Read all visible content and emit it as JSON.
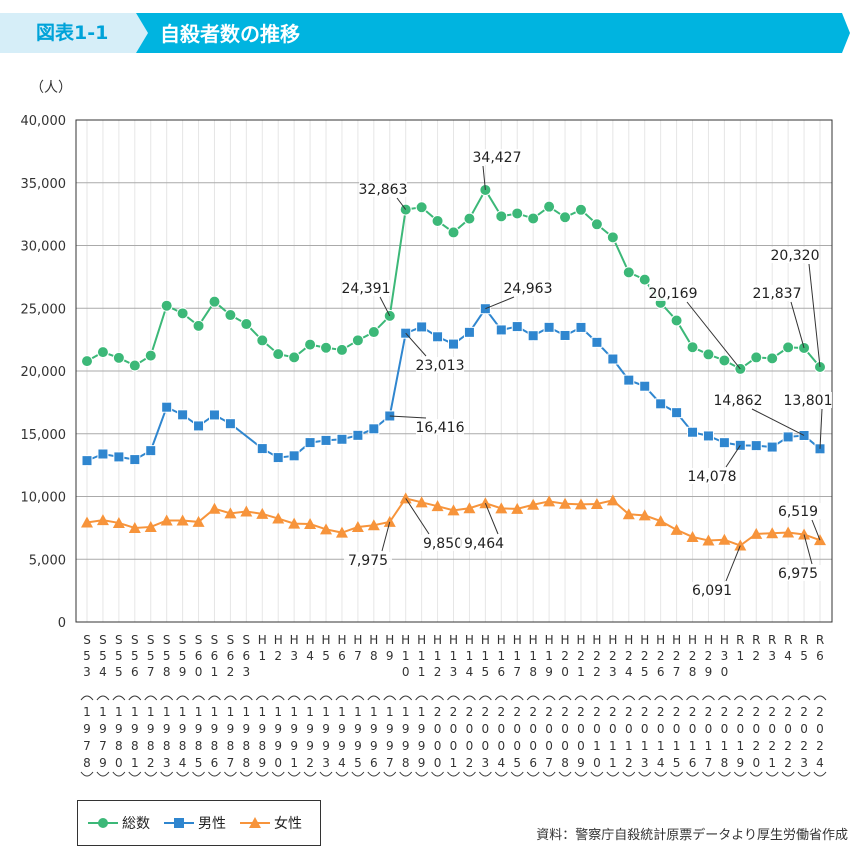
{
  "header": {
    "figure_number": "図表1-1",
    "title": "自殺者数の推移"
  },
  "colors": {
    "header_bg": "#00b4e0",
    "header_light": "#d6eef8",
    "total": "#3cb878",
    "male": "#2f86cf",
    "female": "#f7943b"
  },
  "chart_data": {
    "type": "line",
    "title": "自殺者数の推移",
    "ylabel": "（人）",
    "xlabel": "",
    "ylim": [
      0,
      40000
    ],
    "yticks": [
      "0",
      "5,000",
      "10,000",
      "15,000",
      "20,000",
      "25,000",
      "30,000",
      "35,000",
      "40,000"
    ],
    "grid": true,
    "legend_position": "bottom-left",
    "categories": [
      {
        "era": "S53",
        "year": "1978"
      },
      {
        "era": "S54",
        "year": "1979"
      },
      {
        "era": "S55",
        "year": "1980"
      },
      {
        "era": "S56",
        "year": "1981"
      },
      {
        "era": "S57",
        "year": "1982"
      },
      {
        "era": "S58",
        "year": "1983"
      },
      {
        "era": "S59",
        "year": "1984"
      },
      {
        "era": "S60",
        "year": "1985"
      },
      {
        "era": "S61",
        "year": "1986"
      },
      {
        "era": "S62",
        "year": "1987"
      },
      {
        "era": "S63",
        "year": "1988"
      },
      {
        "era": "H1",
        "year": "1989"
      },
      {
        "era": "H2",
        "year": "1990"
      },
      {
        "era": "H3",
        "year": "1991"
      },
      {
        "era": "H4",
        "year": "1992"
      },
      {
        "era": "H5",
        "year": "1993"
      },
      {
        "era": "H6",
        "year": "1994"
      },
      {
        "era": "H7",
        "year": "1995"
      },
      {
        "era": "H8",
        "year": "1996"
      },
      {
        "era": "H9",
        "year": "1997"
      },
      {
        "era": "H10",
        "year": "1998"
      },
      {
        "era": "H11",
        "year": "1999"
      },
      {
        "era": "H12",
        "year": "2000"
      },
      {
        "era": "H13",
        "year": "2001"
      },
      {
        "era": "H14",
        "year": "2002"
      },
      {
        "era": "H15",
        "year": "2003"
      },
      {
        "era": "H16",
        "year": "2004"
      },
      {
        "era": "H17",
        "year": "2005"
      },
      {
        "era": "H18",
        "year": "2006"
      },
      {
        "era": "H19",
        "year": "2007"
      },
      {
        "era": "H20",
        "year": "2008"
      },
      {
        "era": "H21",
        "year": "2009"
      },
      {
        "era": "H22",
        "year": "2010"
      },
      {
        "era": "H23",
        "year": "2011"
      },
      {
        "era": "H24",
        "year": "2012"
      },
      {
        "era": "H25",
        "year": "2013"
      },
      {
        "era": "H26",
        "year": "2014"
      },
      {
        "era": "H27",
        "year": "2015"
      },
      {
        "era": "H28",
        "year": "2016"
      },
      {
        "era": "H29",
        "year": "2017"
      },
      {
        "era": "H30",
        "year": "2018"
      },
      {
        "era": "R1",
        "year": "2019"
      },
      {
        "era": "R2",
        "year": "2020"
      },
      {
        "era": "R3",
        "year": "2021"
      },
      {
        "era": "R4",
        "year": "2022"
      },
      {
        "era": "R5",
        "year": "2023"
      },
      {
        "era": "R6",
        "year": "2024"
      }
    ],
    "series": [
      {
        "key": "total",
        "name": "総数",
        "marker": "circle",
        "values": [
          20788,
          21503,
          21048,
          20434,
          21228,
          25202,
          24596,
          23599,
          25524,
          24460,
          23742,
          22436,
          21346,
          21084,
          22104,
          21851,
          21679,
          22445,
          23104,
          24391,
          32863,
          33048,
          31957,
          31042,
          32143,
          34427,
          32325,
          32552,
          32155,
          33093,
          32249,
          32845,
          31690,
          30651,
          27858,
          27283,
          25427,
          24025,
          21897,
          21321,
          20840,
          20169,
          21081,
          21007,
          21881,
          21837,
          20320
        ]
      },
      {
        "key": "male",
        "name": "男性",
        "marker": "square",
        "values": [
          12859,
          13386,
          13155,
          12942,
          13654,
          17116,
          16508,
          15624,
          16497,
          15802,
          null,
          13818,
          13102,
          13242,
          14296,
          14468,
          14560,
          14874,
          15393,
          16416,
          23013,
          23512,
          22727,
          22144,
          23080,
          24963,
          23272,
          23540,
          22813,
          23478,
          22831,
          23472,
          22283,
          20955,
          19273,
          18787,
          17386,
          16681,
          15121,
          14826,
          14290,
          14078,
          14055,
          13939,
          14746,
          14862,
          13801
        ]
      },
      {
        "key": "female",
        "name": "女性",
        "marker": "triangle",
        "values": [
          7929,
          8117,
          7893,
          7492,
          7574,
          8086,
          8088,
          7975,
          9027,
          8658,
          8800,
          8618,
          8244,
          7842,
          7808,
          7383,
          7119,
          7571,
          7711,
          7975,
          9850,
          9536,
          9230,
          8898,
          9063,
          9464,
          9053,
          9012,
          9342,
          9615,
          9418,
          9373,
          9407,
          9696,
          8585,
          8496,
          8041,
          7344,
          6776,
          6495,
          6550,
          6091,
          7026,
          7068,
          7135,
          6975,
          6519
        ]
      }
    ],
    "annotations": [
      {
        "series": "total",
        "year": "1998",
        "text": "32,863"
      },
      {
        "series": "total",
        "year": "2003",
        "text": "34,427"
      },
      {
        "series": "total",
        "year": "1997",
        "text": "24,391"
      },
      {
        "series": "total",
        "year": "2019",
        "text": "20,169"
      },
      {
        "series": "total",
        "year": "2023",
        "text": "21,837"
      },
      {
        "series": "total",
        "year": "2024",
        "text": "20,320"
      },
      {
        "series": "male",
        "year": "2003",
        "text": "24,963"
      },
      {
        "series": "male",
        "year": "1998",
        "text": "23,013"
      },
      {
        "series": "male",
        "year": "1997",
        "text": "16,416"
      },
      {
        "series": "male",
        "year": "2023",
        "text": "14,862"
      },
      {
        "series": "male",
        "year": "2024",
        "text": "13,801"
      },
      {
        "series": "male",
        "year": "2019",
        "text": "14,078"
      },
      {
        "series": "female",
        "year": "1997",
        "text": "7,975"
      },
      {
        "series": "female",
        "year": "1998",
        "text": "9,850"
      },
      {
        "series": "female",
        "year": "2003",
        "text": "9,464"
      },
      {
        "series": "female",
        "year": "2019",
        "text": "6,091"
      },
      {
        "series": "female",
        "year": "2023",
        "text": "6,975"
      },
      {
        "series": "female",
        "year": "2024",
        "text": "6,519"
      }
    ]
  },
  "legend": {
    "total": "総数",
    "male": "男性",
    "female": "女性"
  },
  "source": "資料：警察庁自殺統計原票データより厚生労働省作成"
}
